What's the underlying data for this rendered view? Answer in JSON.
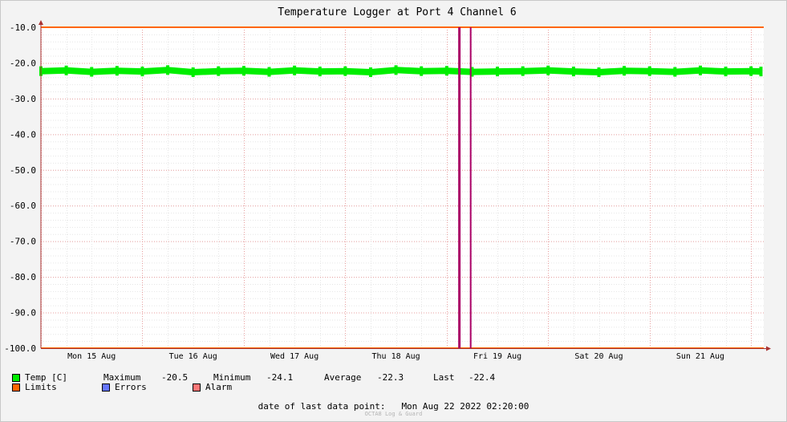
{
  "chart_data": {
    "type": "line",
    "title": "Temperature Logger at Port 4 Channel 6",
    "xlabel": "",
    "ylabel": "",
    "ylim": [
      -100,
      -10
    ],
    "xlim": [
      "2022-08-15 00:00",
      "2022-08-22 03:00"
    ],
    "y_ticks": [
      "-10.0",
      "-20.0",
      "-30.0",
      "-40.0",
      "-50.0",
      "-60.0",
      "-70.0",
      "-80.0",
      "-90.0",
      "-100.0"
    ],
    "x_ticks": [
      "Mon 15 Aug",
      "Tue 16 Aug",
      "Wed 17 Aug",
      "Thu 18 Aug",
      "Fri 19 Aug",
      "Sat 20 Aug",
      "Sun 21 Aug"
    ],
    "grid": true,
    "series": [
      {
        "name": "Temp [C]",
        "color": "#00ee00",
        "x": [
          "2022-08-15 00:00",
          "2022-08-15 06:00",
          "2022-08-15 12:00",
          "2022-08-15 18:00",
          "2022-08-16 00:00",
          "2022-08-16 06:00",
          "2022-08-16 12:00",
          "2022-08-16 18:00",
          "2022-08-17 00:00",
          "2022-08-17 06:00",
          "2022-08-17 12:00",
          "2022-08-17 18:00",
          "2022-08-18 00:00",
          "2022-08-18 06:00",
          "2022-08-18 12:00",
          "2022-08-18 18:00",
          "2022-08-19 00:00",
          "2022-08-19 06:00",
          "2022-08-19 12:00",
          "2022-08-19 18:00",
          "2022-08-20 00:00",
          "2022-08-20 06:00",
          "2022-08-20 12:00",
          "2022-08-20 18:00",
          "2022-08-21 00:00",
          "2022-08-21 06:00",
          "2022-08-21 12:00",
          "2022-08-21 18:00",
          "2022-08-22 00:00",
          "2022-08-22 02:20"
        ],
        "values": [
          -22.3,
          -22.1,
          -22.5,
          -22.2,
          -22.4,
          -22.0,
          -22.6,
          -22.3,
          -22.2,
          -22.5,
          -22.1,
          -22.4,
          -22.3,
          -22.6,
          -22.0,
          -22.3,
          -22.2,
          -22.5,
          -22.4,
          -22.3,
          -22.1,
          -22.4,
          -22.6,
          -22.2,
          -22.3,
          -22.5,
          -22.1,
          -22.4,
          -22.3,
          -22.4
        ]
      },
      {
        "name": "Limits",
        "color": "#ff6600",
        "values": [
          -10.0,
          -100.0
        ]
      }
    ],
    "events": [
      {
        "color": "#aa0066",
        "x": "2022-08-19 03:00"
      },
      {
        "color": "#aa0066",
        "x": "2022-08-19 05:40"
      }
    ]
  },
  "legend": {
    "temp": {
      "label": "Temp [C]",
      "color": "#00ee00"
    },
    "stats": {
      "max_label": "Maximum",
      "max_value": "-20.5",
      "min_label": "Minimum",
      "min_value": "-24.1",
      "avg_label": "Average",
      "avg_value": "-22.3",
      "last_label": "Last",
      "last_value": "-22.4"
    },
    "limits": {
      "label": "Limits",
      "color": "#ff6600"
    },
    "errors": {
      "label": "Errors",
      "color": "#6677ff"
    },
    "alarm": {
      "label": "Alarm",
      "color": "#ff7777"
    }
  },
  "footer": {
    "date_label": "date of last data point:",
    "date_value": "Mon Aug 22 2022 02:20:00",
    "credit": "OCTA8 Log & Guard"
  }
}
